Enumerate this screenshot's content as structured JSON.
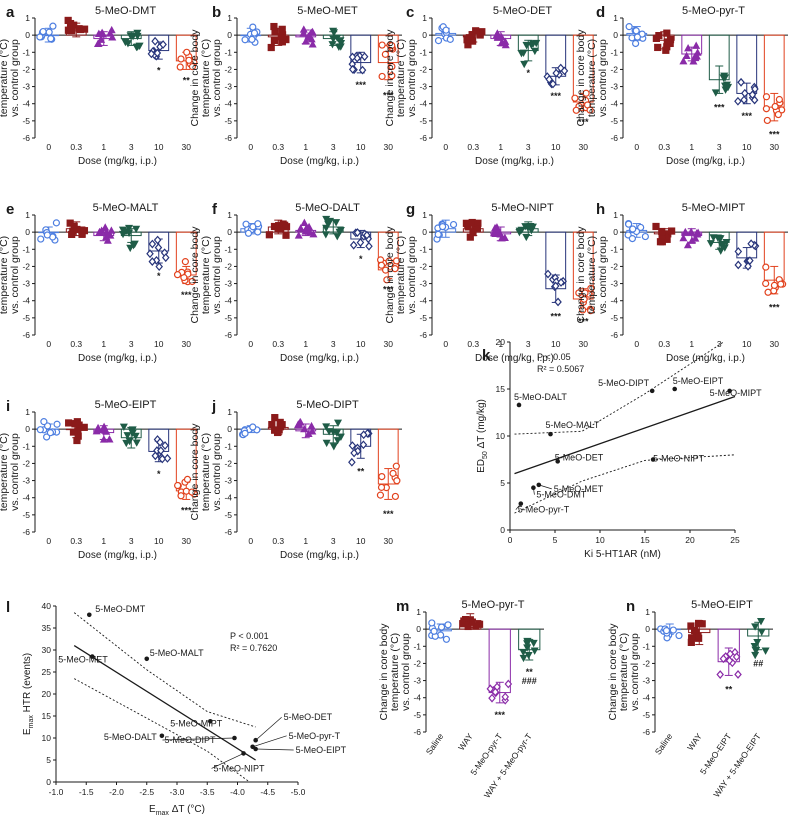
{
  "colors": {
    "c0": "#4d7ee0",
    "c03": "#8b1a1a",
    "c1": "#8a2ba8",
    "c3": "#1f5c47",
    "c10": "#27347a",
    "c30": "#e2421e",
    "axis": "#1a1a1a"
  },
  "chart_data": [
    {
      "id": "a",
      "panel_label": "a",
      "type": "bar",
      "title": "5-MeO-DMT",
      "xlabel": "Dose (mg/kg, i.p.)",
      "ylabel": [
        "Change in core body",
        "temperature (°C)",
        "vs. control group"
      ],
      "ylim": [
        -6,
        1
      ],
      "yticks": [
        "1",
        "0",
        "-1",
        "-2",
        "-3",
        "-4",
        "-5",
        "-6"
      ],
      "categories": [
        "0",
        "0.3",
        "1",
        "3",
        "10",
        "30"
      ],
      "values": [
        0.0,
        0.3,
        -0.2,
        -0.2,
        -0.9,
        -1.5
      ],
      "sem": [
        0.4,
        0.4,
        0.4,
        0.4,
        0.5,
        0.5
      ],
      "markers": [
        "circle",
        "square",
        "triangle",
        "invtriangle",
        "diamond",
        "circle"
      ],
      "color_keys": [
        "c0",
        "c03",
        "c1",
        "c3",
        "c10",
        "c30"
      ],
      "significance": [
        "",
        "",
        "",
        "",
        "*",
        "**"
      ]
    },
    {
      "id": "b",
      "panel_label": "b",
      "type": "bar",
      "title": "5-MeO-MET",
      "xlabel": "Dose (mg/kg, i.p.)",
      "ylabel": [
        "Change in core body",
        "temperature (°C)",
        "vs. control group"
      ],
      "ylim": [
        -6,
        1
      ],
      "yticks": [
        "1",
        "0",
        "-1",
        "-2",
        "-3",
        "-4",
        "-5",
        "-6"
      ],
      "categories": [
        "0",
        "0.3",
        "1",
        "3",
        "10",
        "30"
      ],
      "values": [
        0.0,
        -0.1,
        -0.1,
        -0.2,
        -1.6,
        -1.6
      ],
      "sem": [
        0.4,
        0.5,
        0.4,
        0.4,
        0.6,
        1.0
      ],
      "markers": [
        "circle",
        "square",
        "triangle",
        "invtriangle",
        "diamond",
        "circle"
      ],
      "color_keys": [
        "c0",
        "c03",
        "c1",
        "c3",
        "c10",
        "c30"
      ],
      "significance": [
        "",
        "",
        "",
        "",
        "***",
        "***"
      ]
    },
    {
      "id": "c",
      "panel_label": "c",
      "type": "bar",
      "title": "5-MeO-DET",
      "xlabel": "Dose (mg/kg, i.p.)",
      "ylabel": [
        "Change in core body",
        "temperature (°C)",
        "vs. control group"
      ],
      "ylim": [
        -6,
        1
      ],
      "yticks": [
        "1",
        "0",
        "-1",
        "-2",
        "-3",
        "-4",
        "-5",
        "-6"
      ],
      "categories": [
        "0",
        "0.3",
        "1",
        "3",
        "10",
        "30"
      ],
      "values": [
        0.1,
        -0.1,
        -0.2,
        -0.9,
        -2.4,
        -3.9
      ],
      "sem": [
        0.3,
        0.3,
        0.4,
        0.6,
        0.5,
        0.5
      ],
      "markers": [
        "circle",
        "square",
        "triangle",
        "invtriangle",
        "diamond",
        "circle"
      ],
      "color_keys": [
        "c0",
        "c03",
        "c1",
        "c3",
        "c10",
        "c30"
      ],
      "significance": [
        "",
        "",
        "",
        "*",
        "***",
        "***"
      ]
    },
    {
      "id": "d",
      "panel_label": "d",
      "type": "bar",
      "title": "5-MeO-pyr-T",
      "xlabel": "Dose (mg/kg, i.p.)",
      "ylabel": [
        "Change in core body",
        "temperature (°C)",
        "vs. control group"
      ],
      "ylim": [
        -6,
        1
      ],
      "yticks": [
        "1",
        "0",
        "-1",
        "-2",
        "-3",
        "-4",
        "-5",
        "-6"
      ],
      "categories": [
        "0",
        "0.3",
        "1",
        "3",
        "10",
        "30"
      ],
      "values": [
        0.1,
        -0.3,
        -1.1,
        -2.6,
        -3.4,
        -4.2
      ],
      "sem": [
        0.4,
        0.5,
        0.4,
        0.8,
        0.6,
        0.8
      ],
      "markers": [
        "circle",
        "square",
        "triangle",
        "invtriangle",
        "diamond",
        "circle"
      ],
      "color_keys": [
        "c0",
        "c03",
        "c1",
        "c3",
        "c10",
        "c30"
      ],
      "significance": [
        "",
        "",
        "",
        "***",
        "***",
        "***"
      ]
    },
    {
      "id": "e",
      "panel_label": "e",
      "type": "bar",
      "title": "5-MeO-MALT",
      "xlabel": "Dose (mg/kg, i.p.)",
      "ylabel": [
        "Change in core body",
        "temperature (°C)",
        "vs. control group"
      ],
      "ylim": [
        -6,
        1
      ],
      "yticks": [
        "1",
        "0",
        "-1",
        "-2",
        "-3",
        "-4",
        "-5",
        "-6"
      ],
      "categories": [
        "0",
        "0.3",
        "1",
        "3",
        "10",
        "30"
      ],
      "values": [
        0.0,
        0.2,
        -0.2,
        -0.2,
        -1.1,
        -2.5
      ],
      "sem": [
        0.3,
        0.4,
        0.3,
        0.4,
        0.7,
        0.5
      ],
      "markers": [
        "circle",
        "square",
        "triangle",
        "invtriangle",
        "diamond",
        "circle"
      ],
      "color_keys": [
        "c0",
        "c03",
        "c1",
        "c3",
        "c10",
        "c30"
      ],
      "significance": [
        "",
        "",
        "",
        "",
        "*",
        "***"
      ]
    },
    {
      "id": "f",
      "panel_label": "f",
      "type": "bar",
      "title": "5-MeO-DALT",
      "xlabel": "Dose (mg/kg, i.p.)",
      "ylabel": [
        "Change in core body",
        "temperature (°C)",
        "vs. control group"
      ],
      "ylim": [
        -6,
        1
      ],
      "yticks": [
        "1",
        "0",
        "-1",
        "-2",
        "-3",
        "-4",
        "-5",
        "-6"
      ],
      "categories": [
        "0",
        "0.3",
        "1",
        "3",
        "10",
        "30"
      ],
      "values": [
        0.2,
        0.3,
        0.1,
        0.3,
        -0.4,
        -2.2
      ],
      "sem": [
        0.3,
        0.4,
        0.3,
        0.4,
        0.5,
        0.5
      ],
      "markers": [
        "circle",
        "square",
        "triangle",
        "invtriangle",
        "diamond",
        "circle"
      ],
      "color_keys": [
        "c0",
        "c03",
        "c1",
        "c3",
        "c10",
        "c30"
      ],
      "significance": [
        "",
        "",
        "",
        "",
        "*",
        "***"
      ]
    },
    {
      "id": "g",
      "panel_label": "g",
      "type": "bar",
      "title": "5-MeO-NIPT",
      "xlabel": "Dose (mg/kg, i.p.)",
      "ylabel": [
        "Change in core body",
        "temperature (°C)",
        "vs. control group"
      ],
      "ylim": [
        -6,
        1
      ],
      "yticks": [
        "1",
        "0",
        "-1",
        "-2",
        "-3",
        "-4",
        "-5",
        "-6"
      ],
      "categories": [
        "0",
        "0.3",
        "1",
        "3",
        "10",
        "30"
      ],
      "values": [
        0.2,
        0.2,
        -0.1,
        0.2,
        -3.3,
        -3.9
      ],
      "sem": [
        0.5,
        0.4,
        0.4,
        0.4,
        0.8,
        0.6
      ],
      "markers": [
        "circle",
        "square",
        "triangle",
        "invtriangle",
        "diamond",
        "circle"
      ],
      "color_keys": [
        "c0",
        "c03",
        "c1",
        "c3",
        "c10",
        "c30"
      ],
      "significance": [
        "",
        "",
        "",
        "",
        "***",
        "***"
      ]
    },
    {
      "id": "h",
      "panel_label": "h",
      "type": "bar",
      "title": "5-MeO-MIPT",
      "xlabel": "Dose (mg/kg, i.p.)",
      "ylabel": [
        "Change in core body",
        "temperature (°C)",
        "vs. control group"
      ],
      "ylim": [
        -6,
        1
      ],
      "yticks": [
        "1",
        "0",
        "-1",
        "-2",
        "-3",
        "-4",
        "-5",
        "-6"
      ],
      "categories": [
        "0",
        "0.3",
        "1",
        "3",
        "10",
        "30"
      ],
      "values": [
        0.1,
        -0.1,
        -0.2,
        -0.6,
        -1.5,
        -2.8
      ],
      "sem": [
        0.4,
        0.3,
        0.4,
        0.4,
        0.6,
        0.8
      ],
      "markers": [
        "circle",
        "square",
        "triangle",
        "invtriangle",
        "diamond",
        "circle"
      ],
      "color_keys": [
        "c0",
        "c03",
        "c1",
        "c3",
        "c10",
        "c30"
      ],
      "significance": [
        "",
        "",
        "",
        "",
        "",
        "***"
      ]
    },
    {
      "id": "i",
      "panel_label": "i",
      "type": "bar",
      "title": "5-MeO-EIPT",
      "xlabel": "Dose (mg/kg, i.p.)",
      "ylabel": [
        "Change in core body",
        "temperature (°C)",
        "vs. control group"
      ],
      "ylim": [
        -6,
        1
      ],
      "yticks": [
        "1",
        "0",
        "-1",
        "-2",
        "-3",
        "-4",
        "-5",
        "-6"
      ],
      "categories": [
        "0",
        "0.3",
        "1",
        "3",
        "10",
        "30"
      ],
      "values": [
        0.0,
        0.0,
        -0.2,
        -0.5,
        -1.3,
        -3.6
      ],
      "sem": [
        0.3,
        0.5,
        0.4,
        0.6,
        0.6,
        0.5
      ],
      "markers": [
        "circle",
        "square",
        "triangle",
        "invtriangle",
        "diamond",
        "circle"
      ],
      "color_keys": [
        "c0",
        "c03",
        "c1",
        "c3",
        "c10",
        "c30"
      ],
      "significance": [
        "",
        "",
        "",
        "",
        "*",
        "***"
      ]
    },
    {
      "id": "j",
      "panel_label": "j",
      "type": "bar",
      "title": "5-MeO-DIPT",
      "xlabel": "Dose (mg/kg, i.p.)",
      "ylabel": [
        "Change in core body",
        "temperature (°C)",
        "vs. control group"
      ],
      "ylim": [
        -6,
        1
      ],
      "yticks": [
        "1",
        "0",
        "-1",
        "-2",
        "-3",
        "-4",
        "-5",
        "-6"
      ],
      "categories": [
        "0",
        "0.3",
        "1",
        "3",
        "10",
        "30"
      ],
      "values": [
        0.0,
        0.1,
        -0.1,
        -0.3,
        -1.0,
        -3.2
      ],
      "sem": [
        0.2,
        0.4,
        0.4,
        0.5,
        0.7,
        0.9
      ],
      "markers": [
        "circle",
        "square",
        "triangle",
        "invtriangle",
        "diamond",
        "circle"
      ],
      "color_keys": [
        "c0",
        "c03",
        "c1",
        "c3",
        "c10",
        "c30"
      ],
      "significance": [
        "",
        "",
        "",
        "",
        "**",
        "***"
      ]
    },
    {
      "id": "k",
      "panel_label": "k",
      "type": "scatter",
      "xlabel": "Ki 5-HT1AR (nM)",
      "ylabel_main": "ED",
      "ylabel_sub": "50",
      "ylabel_rest": " ΔT (mg/kg)",
      "xlim": [
        0,
        25
      ],
      "ylim": [
        0,
        20
      ],
      "xticks": [
        "0",
        "5",
        "10",
        "15",
        "20",
        "25"
      ],
      "yticks": [
        "0",
        "5",
        "10",
        "15",
        "20"
      ],
      "stat_p": "P < 0.05",
      "stat_r2": "R² = 0.5067",
      "fit_line": [
        [
          0.5,
          6.0
        ],
        [
          25.0,
          14.2
        ]
      ],
      "ci_upper": [
        [
          0.5,
          10.2
        ],
        [
          8,
          10.5
        ],
        [
          15,
          14.5
        ],
        [
          25,
          20.8
        ]
      ],
      "ci_lower": [
        [
          0.5,
          1.8
        ],
        [
          8,
          5.2
        ],
        [
          15,
          7.4
        ],
        [
          25,
          8.0
        ]
      ],
      "points": [
        {
          "label": "5-MeO-DALT",
          "x": 1.0,
          "y": 13.3
        },
        {
          "label": "5-MeO-MALT",
          "x": 4.5,
          "y": 10.2
        },
        {
          "label": "5-MeO-DET",
          "x": 5.3,
          "y": 7.3
        },
        {
          "label": "5-MeO-MET",
          "x": 3.2,
          "y": 4.8
        },
        {
          "label": "5-MeO-DMT",
          "x": 2.6,
          "y": 4.5
        },
        {
          "label": "5-MeO-pyr-T",
          "x": 1.2,
          "y": 2.8
        },
        {
          "label": "5-MeO-DIPT",
          "x": 15.8,
          "y": 14.8
        },
        {
          "label": "5-MeO-EIPT",
          "x": 18.3,
          "y": 15.0
        },
        {
          "label": "5-MeO-MIPT",
          "x": 24.4,
          "y": 14.8
        },
        {
          "label": "5-MeO-NIPT",
          "x": 15.9,
          "y": 7.5
        }
      ]
    },
    {
      "id": "l",
      "panel_label": "l",
      "type": "scatter",
      "xlabel_main": "E",
      "xlabel_sub": "max",
      "xlabel_rest": " ΔT (°C)",
      "ylabel_main": "E",
      "ylabel_sub": "max",
      "ylabel_rest": " HTR (events)",
      "xlim": [
        -1.0,
        -5.0
      ],
      "ylim": [
        0,
        40
      ],
      "xticks": [
        "-1.0",
        "-1.5",
        "-2.0",
        "-2.5",
        "-3.0",
        "-3.5",
        "-4.0",
        "-4.5",
        "-5.0"
      ],
      "yticks": [
        "0",
        "5",
        "10",
        "15",
        "20",
        "25",
        "30",
        "35",
        "40"
      ],
      "stat_p": "P < 0.001",
      "stat_r2": "R² = 0.7620",
      "fit_line": [
        [
          -1.3,
          31.0
        ],
        [
          -4.3,
          5.0
        ]
      ],
      "ci_upper": [
        [
          -1.3,
          38.5
        ],
        [
          -2.5,
          25.5
        ],
        [
          -3.5,
          16.0
        ],
        [
          -4.3,
          12.5
        ]
      ],
      "ci_lower": [
        [
          -1.3,
          23.5
        ],
        [
          -2.5,
          14.5
        ],
        [
          -3.5,
          7.0
        ],
        [
          -4.3,
          -1.0
        ]
      ],
      "points": [
        {
          "label": "5-MeO-DMT",
          "x": -1.55,
          "y": 38.0
        },
        {
          "label": "5-MeO-MET",
          "x": -1.6,
          "y": 28.5
        },
        {
          "label": "5-MeO-MALT",
          "x": -2.5,
          "y": 28.0
        },
        {
          "label": "5-MeO-MIPT",
          "x": -3.55,
          "y": 13.8
        },
        {
          "label": "5-MeO-DALT",
          "x": -2.75,
          "y": 10.5
        },
        {
          "label": "5-MeO-DIPT",
          "x": -3.95,
          "y": 10.0
        },
        {
          "label": "5-MeO-DET",
          "x": -4.3,
          "y": 9.5
        },
        {
          "label": "5-MeO-pyr-T",
          "x": -4.25,
          "y": 8.0
        },
        {
          "label": "5-MeO-EIPT",
          "x": -4.3,
          "y": 7.5
        },
        {
          "label": "5-MeO-NIPT",
          "x": -4.1,
          "y": 6.5
        }
      ]
    },
    {
      "id": "m",
      "panel_label": "m",
      "type": "bar",
      "title": "5-MeO-pyr-T",
      "xlabel": "",
      "ylabel": [
        "Change in core body",
        "temperature (°C)",
        "vs. control group"
      ],
      "ylim": [
        -6,
        1
      ],
      "yticks": [
        "1",
        "0",
        "-1",
        "-2",
        "-3",
        "-4",
        "-5",
        "-6"
      ],
      "categories": [
        "Saline",
        "WAY",
        "5-MeO-pyr-T",
        "WAY + 5-MeO-pyr-T"
      ],
      "values": [
        -0.1,
        0.5,
        -3.7,
        -1.2
      ],
      "sem": [
        0.4,
        0.4,
        0.6,
        0.6
      ],
      "markers": [
        "circle",
        "square",
        "diamond",
        "invtriangle"
      ],
      "color_keys": [
        "c0",
        "c03",
        "c1",
        "c3"
      ],
      "significance": [
        "",
        "",
        "***",
        "**\n###"
      ]
    },
    {
      "id": "n",
      "panel_label": "n",
      "type": "bar",
      "title": "5-MeO-EIPT",
      "xlabel": "",
      "ylabel": [
        "Change in core body",
        "temperature (°C)",
        "vs. control group"
      ],
      "ylim": [
        -6,
        1
      ],
      "yticks": [
        "1",
        "0",
        "-1",
        "-2",
        "-3",
        "-4",
        "-5",
        "-6"
      ],
      "categories": [
        "Saline",
        "WAY",
        "5-MeO-EIPT",
        "WAY + 5-MeO-EIPT"
      ],
      "values": [
        0.0,
        -0.2,
        -1.9,
        -0.4
      ],
      "sem": [
        0.3,
        0.7,
        0.8,
        0.8
      ],
      "markers": [
        "circle",
        "square",
        "diamond",
        "invtriangle"
      ],
      "color_keys": [
        "c0",
        "c03",
        "c1",
        "c3"
      ],
      "significance": [
        "",
        "",
        "**",
        "##"
      ]
    }
  ]
}
